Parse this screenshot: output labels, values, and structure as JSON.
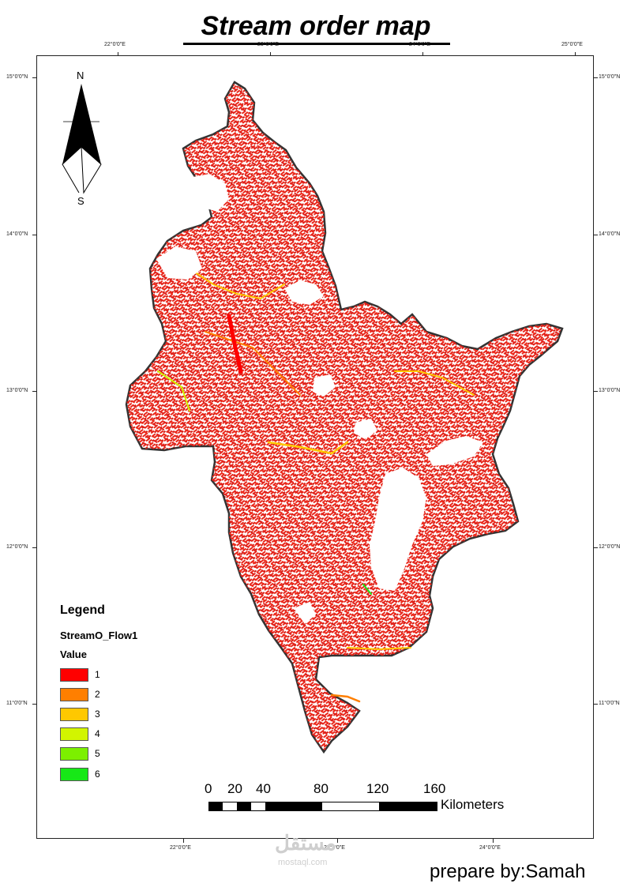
{
  "title": "Stream order  map",
  "graticule": {
    "top_labels": [
      "22°0'0\"E",
      "23°0'0\"E",
      "24°0'0\"E",
      "25°0'0\"E"
    ],
    "bottom_labels": [
      "22°0'0\"E",
      "23°0'0\"E",
      "24°0'0\"E"
    ],
    "left_labels": [
      "15°0'0\"N",
      "14°0'0\"N",
      "13°0'0\"N",
      "12°0'0\"N",
      "11°0'0\"N"
    ],
    "right_labels": [
      "15°0'0\"N",
      "14°0'0\"N",
      "13°0'0\"N",
      "12°0'0\"N",
      "11°0'0\"N"
    ]
  },
  "north_arrow": {
    "n_label": "N",
    "s_label": "S",
    "icon": "north-arrow-icon"
  },
  "legend": {
    "title": "Legend",
    "layer": "StreamO_Flow1",
    "field": "Value",
    "items": [
      {
        "label": "1",
        "color": "#ff0000"
      },
      {
        "label": "2",
        "color": "#ff7f00"
      },
      {
        "label": "3",
        "color": "#ffc800"
      },
      {
        "label": "4",
        "color": "#d2f500"
      },
      {
        "label": "5",
        "color": "#7cf000"
      },
      {
        "label": "6",
        "color": "#17e817"
      }
    ]
  },
  "scale_bar": {
    "labels": [
      "0",
      "20",
      "40",
      "80",
      "120",
      "160"
    ],
    "unit": "Kilometers"
  },
  "credit": "prepare by:Samah",
  "watermark": {
    "text": "مستقل",
    "sub": "mostaql.com"
  },
  "map_colors": {
    "boundary": "#333333",
    "stream_base": "#e8271b",
    "background": "#ffffff"
  }
}
